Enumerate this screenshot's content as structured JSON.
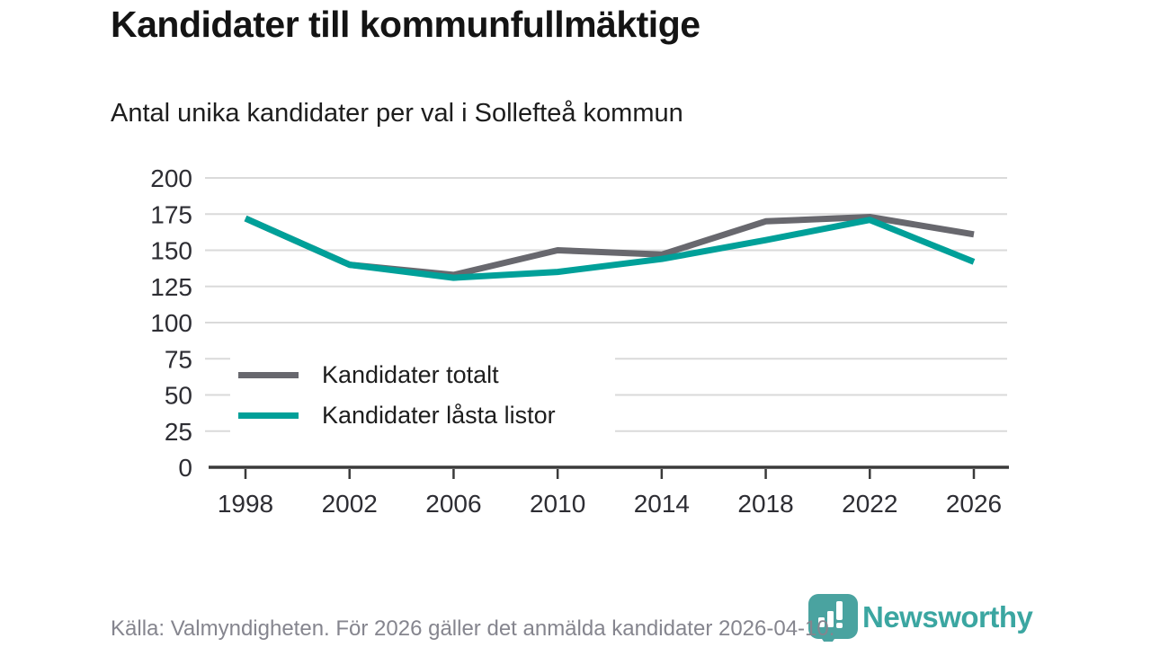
{
  "header": {
    "title": "Kandidater till kommunfullmäktige",
    "subtitle": "Antal unika kandidater per val i Sollefteå kommun"
  },
  "chart_data": {
    "type": "line",
    "title": "Kandidater till kommunfullmäktige",
    "subtitle": "Antal unika kandidater per val i Sollefteå kommun",
    "x": [
      "1998",
      "2002",
      "2006",
      "2010",
      "2014",
      "2018",
      "2022",
      "2026"
    ],
    "series": [
      {
        "name": "Kandidater totalt",
        "color": "#68686e",
        "values": [
          172,
          140,
          133,
          150,
          147,
          170,
          173,
          161
        ]
      },
      {
        "name": "Kandidater låsta listor",
        "color": "#00a099",
        "values": [
          172,
          140,
          131,
          135,
          144,
          157,
          171,
          142
        ]
      }
    ],
    "ylim": [
      0,
      200
    ],
    "yticks": [
      0,
      25,
      50,
      75,
      100,
      125,
      150,
      175,
      200
    ],
    "grid": "horizontal",
    "legend_position": "inside-left",
    "gridline_color": "#dadada",
    "axis_color": "#3a3a3a"
  },
  "footer": {
    "source_text": "Källa: Valmyndigheten. För 2026 gäller det anmälda kandidater 2026-04-10.",
    "brand": "Newsworthy",
    "brand_color": "#3ba6a1",
    "brand_icon_color": "#4aa3a0"
  }
}
